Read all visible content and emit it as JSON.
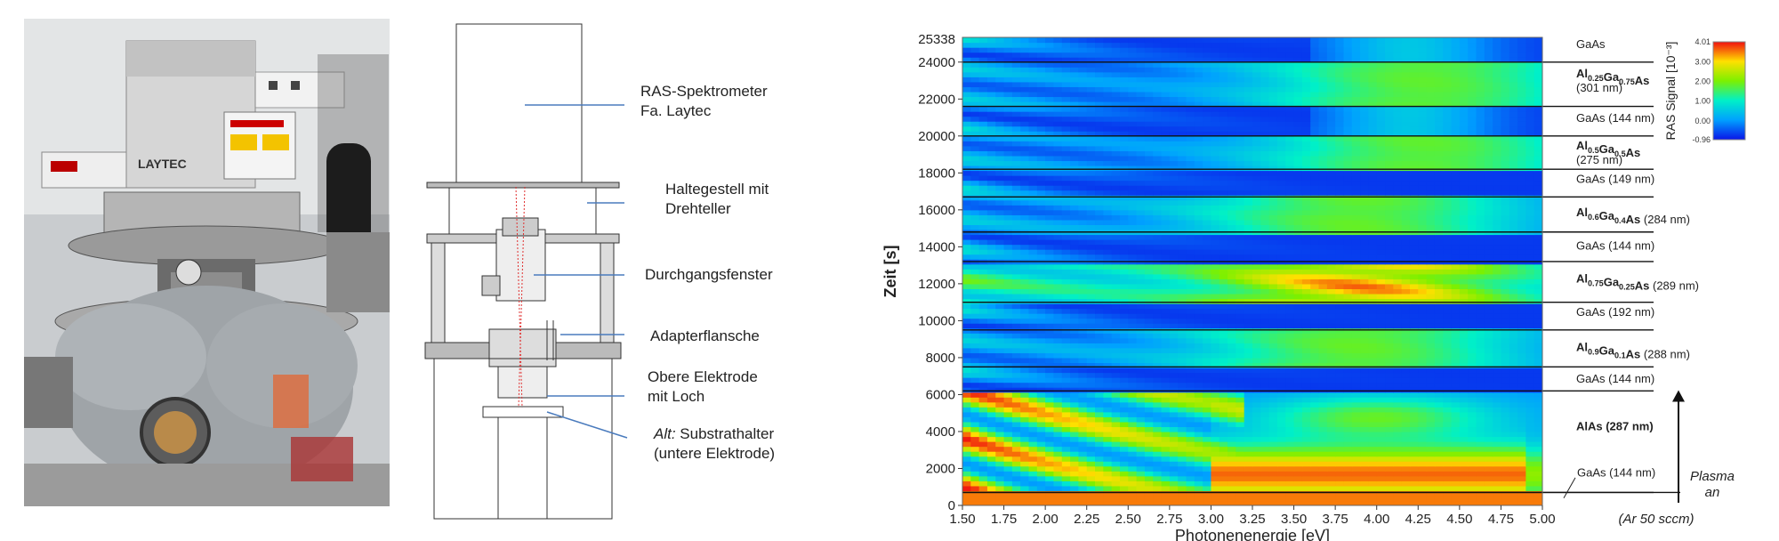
{
  "labels": {
    "ras_1": "RAS-Spektrometer",
    "ras_2": "Fa. Laytec",
    "halte_1": "Haltegestell mit",
    "halte_2": "Drehteller",
    "durch": "Durchgangsfenster",
    "adapter": "Adapterflansche",
    "obere_1": "Obere Elektrode",
    "obere_2": "mit Loch",
    "alt_prefix": "Alt:",
    "alt_1": "Substrathalter",
    "alt_2": "(untere Elektrode)"
  },
  "photo": {
    "brand": "LAYTEC"
  },
  "chart_data": {
    "type": "heatmap",
    "xlabel": "Photonenenergie  [eV]",
    "ylabel": "Zeit [s]",
    "xlim": [
      1.5,
      5.0
    ],
    "ylim": [
      0,
      25338
    ],
    "x_ticks": [
      "1.50",
      "1.75",
      "2.00",
      "2.25",
      "2.50",
      "2.75",
      "3.00",
      "3.25",
      "3.50",
      "3.75",
      "4.00",
      "4.25",
      "4.50",
      "4.75",
      "5.00"
    ],
    "y_ticks": [
      0,
      2000,
      4000,
      6000,
      8000,
      10000,
      12000,
      14000,
      16000,
      18000,
      20000,
      22000,
      24000
    ],
    "y_top_label": "25338",
    "colorbar": {
      "label": "RAS Signal [10⁻³]",
      "ticks": [
        "4.01",
        "3.00",
        "2.00",
        "1.00",
        "0.00",
        "-0.96"
      ],
      "min": -0.96,
      "max": 4.01
    },
    "layer_boundaries": [
      24000,
      21600,
      20000,
      18200,
      16700,
      14800,
      13200,
      11000,
      9500,
      7500,
      6200,
      700
    ],
    "layers": [
      {
        "main": "GaAs",
        "suffix": "",
        "bold": false,
        "y": 25000
      },
      {
        "main": "Al0.25Ga0.75As",
        "suffix": "",
        "bold": true,
        "y": 23400,
        "line2": "(301 nm)"
      },
      {
        "main": "GaAs (144 nm)",
        "suffix": "",
        "bold": false,
        "y": 21000
      },
      {
        "main": "Al0.5Ga0.5As",
        "suffix": "",
        "bold": true,
        "y": 19500,
        "line2": "(275 nm)"
      },
      {
        "main": "GaAs (149 nm)",
        "suffix": "",
        "bold": false,
        "y": 17700
      },
      {
        "main": "Al0.6Ga0.4As",
        "suffix": " (284 nm)",
        "bold": true,
        "y": 15900
      },
      {
        "main": "GaAs (144 nm)",
        "suffix": "",
        "bold": false,
        "y": 14100
      },
      {
        "main": "Al0.75Ga0.25As",
        "suffix": " (289 nm)",
        "bold": true,
        "y": 12300
      },
      {
        "main": "GaAs (192 nm)",
        "suffix": "",
        "bold": false,
        "y": 10500
      },
      {
        "main": "Al0.9Ga0.1As",
        "suffix": " (288 nm)",
        "bold": true,
        "y": 8600
      },
      {
        "main": "GaAs (144 nm)",
        "suffix": "",
        "bold": false,
        "y": 6900
      },
      {
        "main": "AlAs (287 nm)",
        "suffix": "",
        "bold": true,
        "y": 4300
      }
    ],
    "bottom_layer": "GaAs (144 nm)",
    "plasma_label_1": "Plasma",
    "plasma_label_2": "an",
    "gas_note": "(Ar 50 sccm)"
  }
}
